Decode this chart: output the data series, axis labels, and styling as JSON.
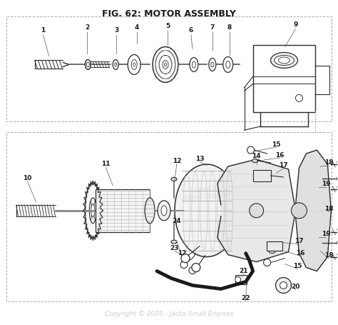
{
  "title": "FIG. 62: MOTOR ASSEMBLY",
  "copyright": "Copyright © 2020 - Jacks Small Engines",
  "bg_color": "#ffffff",
  "title_fontsize": 9,
  "title_fontweight": "bold",
  "copyright_color": "#cccccc",
  "copyright_fontsize": 6.5,
  "line_color": "#2a2a2a",
  "text_color": "#1a1a1a",
  "gray": "#888888",
  "light_gray": "#cccccc",
  "dash_color": "#999999"
}
